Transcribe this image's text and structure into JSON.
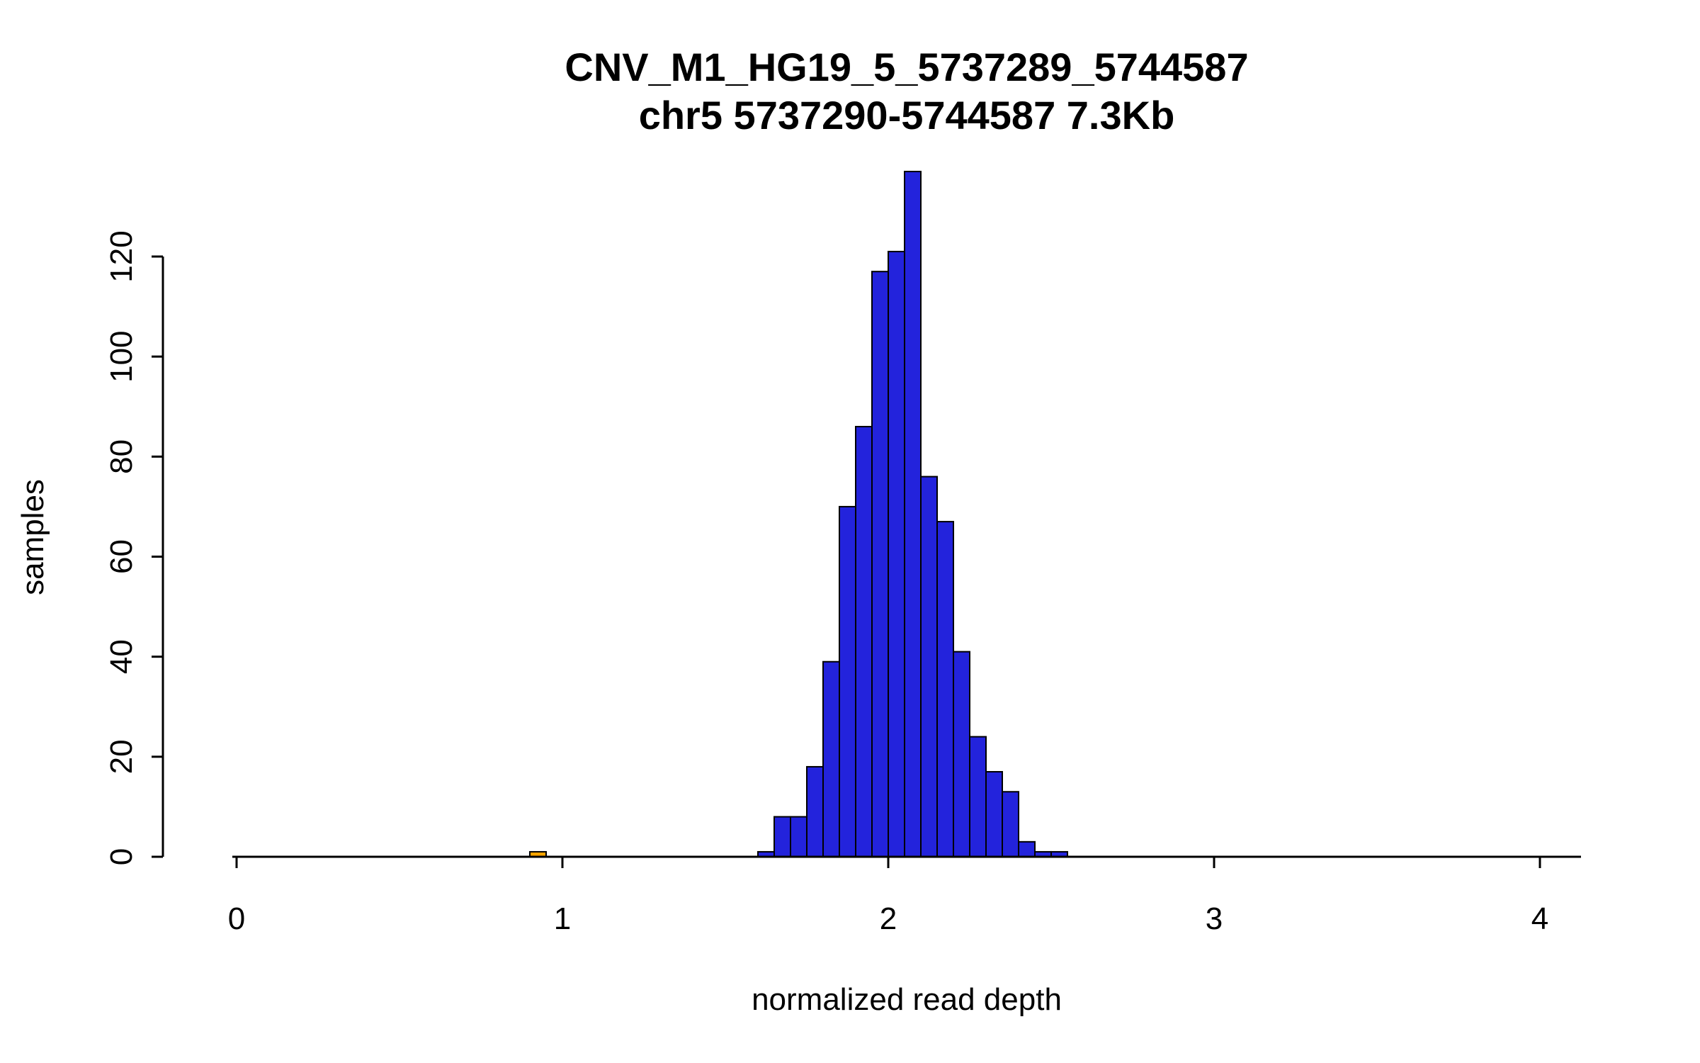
{
  "page": {
    "background": "#FFFFFF"
  },
  "chart_data": {
    "type": "bar",
    "subtype": "histogram",
    "title": "CNV_M1_HG19_5_5737289_5744587",
    "subtitle": "chr5 5737290-5744587 7.3Kb",
    "xlabel": "normalized read depth",
    "ylabel": "samples",
    "xlim": [
      0,
      4.13
    ],
    "ylim": [
      0,
      137
    ],
    "x_ticks": [
      0,
      1,
      2,
      3,
      4
    ],
    "y_ticks": [
      0,
      20,
      40,
      60,
      80,
      100,
      120
    ],
    "bin_width": 0.05,
    "grid": false,
    "legend": false,
    "colors": {
      "blue": "#2323DC",
      "orange": "#FFA500",
      "axis": "#000000",
      "bar_border": "#000000"
    },
    "bars": [
      {
        "x": 0.9,
        "count": 1,
        "color": "orange"
      },
      {
        "x": 1.6,
        "count": 1,
        "color": "blue"
      },
      {
        "x": 1.65,
        "count": 8,
        "color": "blue"
      },
      {
        "x": 1.7,
        "count": 8,
        "color": "blue"
      },
      {
        "x": 1.75,
        "count": 18,
        "color": "blue"
      },
      {
        "x": 1.8,
        "count": 39,
        "color": "blue"
      },
      {
        "x": 1.85,
        "count": 70,
        "color": "blue"
      },
      {
        "x": 1.9,
        "count": 86,
        "color": "blue"
      },
      {
        "x": 1.95,
        "count": 117,
        "color": "blue"
      },
      {
        "x": 2.0,
        "count": 121,
        "color": "blue"
      },
      {
        "x": 2.05,
        "count": 137,
        "color": "blue"
      },
      {
        "x": 2.1,
        "count": 76,
        "color": "blue"
      },
      {
        "x": 2.15,
        "count": 67,
        "color": "blue"
      },
      {
        "x": 2.2,
        "count": 41,
        "color": "blue"
      },
      {
        "x": 2.25,
        "count": 24,
        "color": "blue"
      },
      {
        "x": 2.3,
        "count": 17,
        "color": "blue"
      },
      {
        "x": 2.35,
        "count": 13,
        "color": "blue"
      },
      {
        "x": 2.4,
        "count": 3,
        "color": "blue"
      },
      {
        "x": 2.45,
        "count": 1,
        "color": "blue"
      },
      {
        "x": 2.5,
        "count": 1,
        "color": "blue"
      }
    ]
  }
}
